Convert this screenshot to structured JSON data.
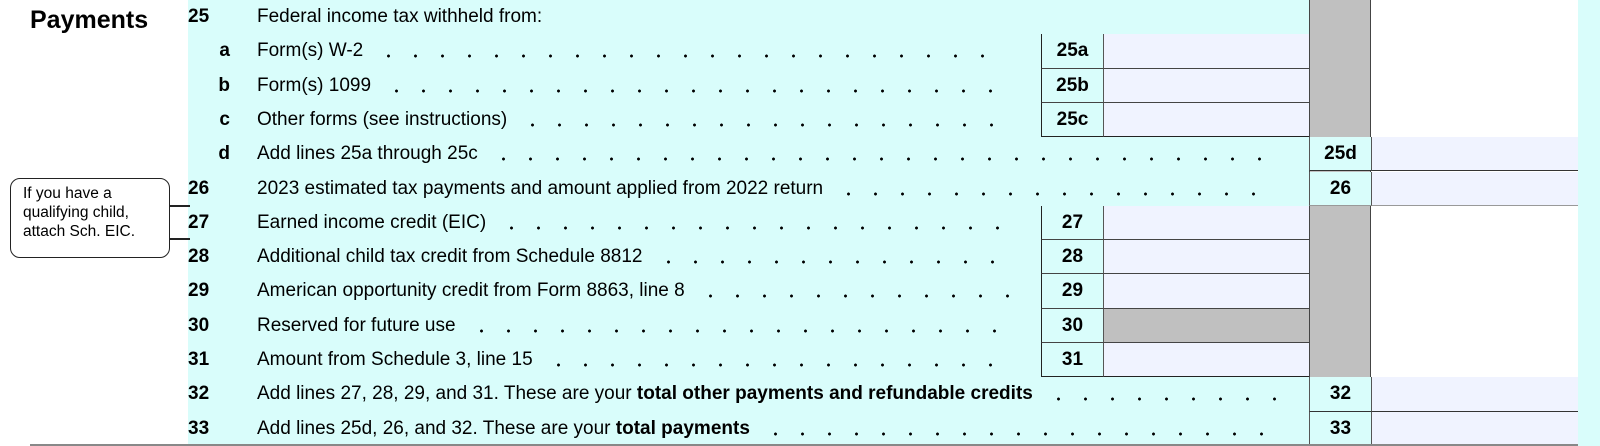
{
  "section_title": "Payments",
  "callout": {
    "lines": [
      "If you have a",
      "qualifying child,",
      "attach Sch. EIC."
    ]
  },
  "lines": [
    {
      "num": "25",
      "sub": "",
      "text": "Federal income tax withheld from:",
      "bold": "",
      "label": "",
      "column": "none"
    },
    {
      "num": "",
      "sub": "a",
      "text": "Form(s) W-2",
      "bold": "",
      "label": "25a",
      "column": "inner"
    },
    {
      "num": "",
      "sub": "b",
      "text": "Form(s) 1099",
      "bold": "",
      "label": "25b",
      "column": "inner"
    },
    {
      "num": "",
      "sub": "c",
      "text": "Other forms (see instructions)",
      "bold": "",
      "label": "25c",
      "column": "inner"
    },
    {
      "num": "",
      "sub": "d",
      "text": "Add lines 25a through 25c",
      "bold": "",
      "label": "25d",
      "column": "outer"
    },
    {
      "num": "26",
      "sub": "",
      "text": "2023 estimated tax payments and amount applied from 2022 return",
      "bold": "",
      "label": "26",
      "column": "outer"
    },
    {
      "num": "27",
      "sub": "",
      "text": "Earned income credit (EIC)",
      "bold": "",
      "label": "27",
      "column": "inner"
    },
    {
      "num": "28",
      "sub": "",
      "text": "Additional child tax credit from Schedule 8812",
      "bold": "",
      "label": "28",
      "column": "inner"
    },
    {
      "num": "29",
      "sub": "",
      "text": "American opportunity credit from Form 8863, line 8",
      "bold": "",
      "label": "29",
      "column": "inner"
    },
    {
      "num": "30",
      "sub": "",
      "text": "Reserved for future use",
      "bold": "",
      "label": "30",
      "column": "inner",
      "shaded": true
    },
    {
      "num": "31",
      "sub": "",
      "text": "Amount from Schedule 3, line 15",
      "bold": "",
      "label": "31",
      "column": "inner"
    },
    {
      "num": "32",
      "sub": "",
      "text": "Add lines 27, 28, 29, and 31. These are your ",
      "bold": "total other payments and refundable credits",
      "label": "32",
      "column": "outer"
    },
    {
      "num": "33",
      "sub": "",
      "text": "Add lines 25d, 26, and 32. These are your ",
      "bold": "total payments",
      "label": "33",
      "column": "outer"
    }
  ],
  "values": {
    "25a": "",
    "25b": "",
    "25c": "",
    "25d": "",
    "26": "",
    "27": "",
    "28": "",
    "29": "",
    "31": "",
    "32": "",
    "33": ""
  },
  "colors": {
    "background": "#d9fdfb",
    "field": "#f0f3ff",
    "shaded": "#c0c0c0"
  }
}
